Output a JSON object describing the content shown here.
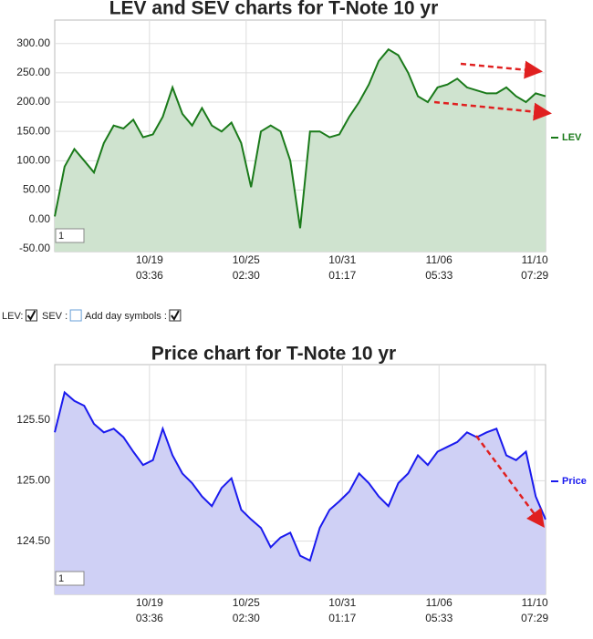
{
  "chart_data": [
    {
      "type": "line",
      "title": "LEV and SEV charts for T-Note 10 yr",
      "zoom_input": "1",
      "x": [
        0,
        2,
        4,
        6,
        8,
        10,
        12,
        14,
        16,
        18,
        20,
        22,
        24,
        26,
        28,
        30,
        32,
        34,
        36,
        38,
        40,
        42,
        44,
        46,
        48,
        50,
        52,
        54,
        56,
        58,
        60,
        62,
        64,
        66,
        68,
        70,
        72,
        74,
        76,
        78,
        80,
        82,
        84,
        86,
        88,
        90,
        92,
        94,
        96,
        98,
        100
      ],
      "series": [
        {
          "name": "LEV",
          "color": "#1a7a1a",
          "fill": "#cfe3cf",
          "values": [
            5,
            90,
            120,
            100,
            80,
            130,
            160,
            155,
            170,
            140,
            145,
            175,
            225,
            180,
            160,
            190,
            160,
            150,
            165,
            130,
            55,
            150,
            160,
            150,
            100,
            -15,
            150,
            150,
            140,
            145,
            175,
            200,
            230,
            270,
            290,
            280,
            250,
            210,
            200,
            225,
            230,
            240,
            225,
            220,
            215,
            215,
            225,
            210,
            200,
            215,
            210
          ]
        }
      ],
      "xlim": [
        0,
        100
      ],
      "xticks": [
        {
          "value": 19.3,
          "label": "10/19 03:36"
        },
        {
          "value": 39.0,
          "label": "10/25 02:30"
        },
        {
          "value": 58.6,
          "label": "10/31 01:17"
        },
        {
          "value": 78.3,
          "label": "11/06 05:33"
        },
        {
          "value": 97.8,
          "label": "11/10 07:29"
        }
      ],
      "ylim": [
        -55,
        340
      ],
      "yticks": [
        {
          "value": 300,
          "label": "300.00"
        },
        {
          "value": 250,
          "label": "250.00"
        },
        {
          "value": 200,
          "label": "200.00"
        },
        {
          "value": 150,
          "label": "150.00"
        },
        {
          "value": 100,
          "label": "100.00"
        },
        {
          "value": 50,
          "label": "50.00"
        },
        {
          "value": 0,
          "label": "0.00"
        },
        {
          "value": -50,
          "label": "-50.00"
        }
      ],
      "grid": true,
      "legend": "right"
    },
    {
      "type": "line",
      "title": "Price chart for T-Note 10 yr",
      "zoom_input": "1",
      "x": [
        0,
        2,
        4,
        6,
        8,
        10,
        12,
        14,
        16,
        18,
        20,
        22,
        24,
        26,
        28,
        30,
        32,
        34,
        36,
        38,
        40,
        42,
        44,
        46,
        48,
        50,
        52,
        54,
        56,
        58,
        60,
        62,
        64,
        66,
        68,
        70,
        72,
        74,
        76,
        78,
        80,
        82,
        84,
        86,
        88,
        90,
        92,
        94,
        96,
        98,
        100
      ],
      "series": [
        {
          "name": "Price",
          "color": "#1a1aee",
          "fill": "#cfd0f5",
          "values": [
            125.4,
            125.73,
            125.66,
            125.62,
            125.47,
            125.4,
            125.43,
            125.36,
            125.24,
            125.13,
            125.17,
            125.43,
            125.21,
            125.06,
            124.98,
            124.87,
            124.79,
            124.94,
            125.02,
            124.76,
            124.68,
            124.61,
            124.45,
            124.53,
            124.57,
            124.38,
            124.34,
            124.61,
            124.76,
            124.83,
            124.91,
            125.06,
            124.98,
            124.87,
            124.79,
            124.98,
            125.06,
            125.21,
            125.13,
            125.24,
            125.28,
            125.32,
            125.4,
            125.36,
            125.4,
            125.43,
            125.21,
            125.17,
            125.24,
            124.87,
            124.68
          ]
        }
      ],
      "xlim": [
        0,
        100
      ],
      "xticks": [
        {
          "value": 19.3,
          "label": "10/19 03:36"
        },
        {
          "value": 39.0,
          "label": "10/25 02:30"
        },
        {
          "value": 58.6,
          "label": "10/31 01:17"
        },
        {
          "value": 78.3,
          "label": "11/06 05:33"
        },
        {
          "value": 97.8,
          "label": "11/10 07:29"
        }
      ],
      "ylim": [
        124.06,
        125.96
      ],
      "yticks": [
        {
          "value": 125.5,
          "label": "125.50"
        },
        {
          "value": 125,
          "label": "125.00"
        },
        {
          "value": 124.5,
          "label": "124.50"
        }
      ],
      "grid": true,
      "legend": "right"
    }
  ],
  "controls": [
    {
      "label": "LEV:",
      "checked": true
    },
    {
      "label": "SEV :",
      "checked": false
    },
    {
      "label": "Add day symbols :",
      "checked": true
    }
  ]
}
